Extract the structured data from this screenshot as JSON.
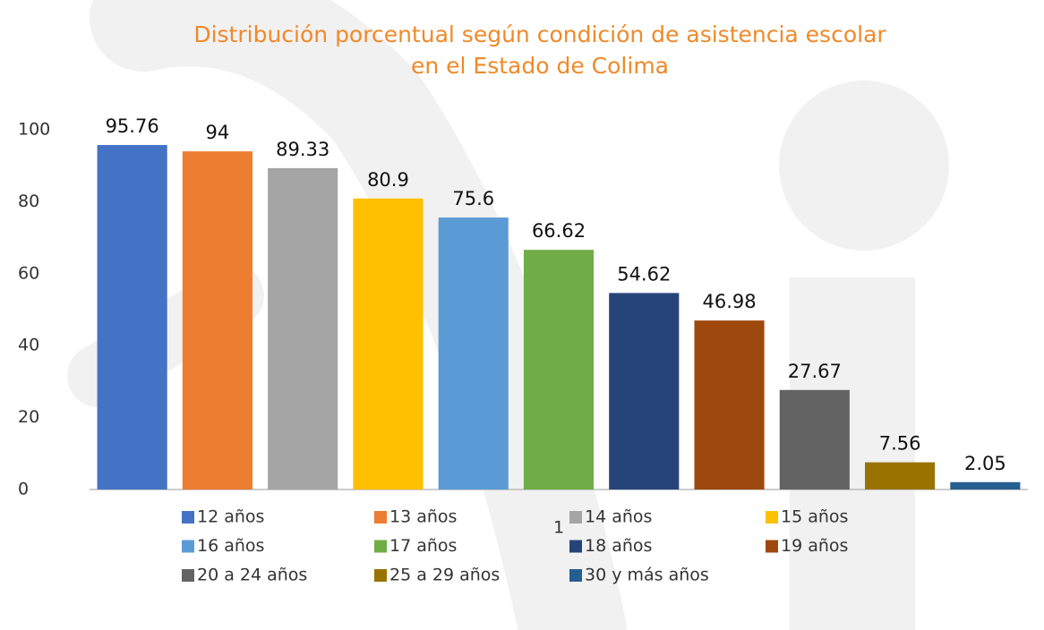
{
  "chart_data": {
    "type": "bar",
    "title": [
      "Distribución porcentual  según condición de asistencia escolar",
      "en el Estado de Colima"
    ],
    "categories": [
      "1"
    ],
    "series": [
      {
        "name": "12 años",
        "color": "#4472c4",
        "values": [
          95.76
        ]
      },
      {
        "name": "13 años",
        "color": "#ed7d31",
        "values": [
          94
        ]
      },
      {
        "name": "14 años",
        "color": "#a5a5a5",
        "values": [
          89.33
        ]
      },
      {
        "name": "15 años",
        "color": "#ffc000",
        "values": [
          80.9
        ]
      },
      {
        "name": "16 años",
        "color": "#5b9bd5",
        "values": [
          75.6
        ]
      },
      {
        "name": "17 años",
        "color": "#70ad47",
        "values": [
          66.62
        ]
      },
      {
        "name": "18 años",
        "color": "#264478",
        "values": [
          54.62
        ]
      },
      {
        "name": "19 años",
        "color": "#9e480e",
        "values": [
          46.98
        ]
      },
      {
        "name": "20 a 24 años",
        "color": "#636363",
        "values": [
          27.67
        ]
      },
      {
        "name": "25 a 29 años",
        "color": "#997300",
        "values": [
          7.56
        ]
      },
      {
        "name": "30 y más años",
        "color": "#255e91",
        "values": [
          2.05
        ]
      }
    ],
    "ylim": [
      0,
      100
    ],
    "yticks": [
      0,
      20,
      40,
      60,
      80,
      100
    ],
    "grid": false,
    "legend": "bottom"
  }
}
